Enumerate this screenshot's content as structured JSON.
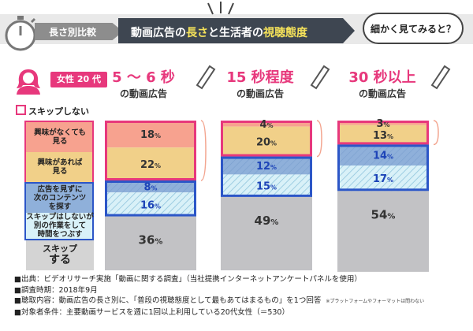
{
  "header": {
    "tag": "長さ別比較",
    "title_pre": "動画広告の",
    "title_hl1": "長さ",
    "title_mid": "と生活者の",
    "title_hl2": "視聴態度",
    "bubble": "細かく見てみると？"
  },
  "persona": "女性 20 代",
  "legend": {
    "skip_not": "スキップしない"
  },
  "categories": {
    "uninterested": [
      "興味がなくても",
      "見る"
    ],
    "interested": [
      "興味があれば",
      "見る"
    ],
    "next_content": [
      "広告を見ずに",
      "次のコンテンツ",
      "を探す"
    ],
    "other_task": [
      "スキップはしないが",
      "別の作業をして",
      "時間をつぶす"
    ],
    "skip": [
      "スキップ",
      "する"
    ]
  },
  "colors": {
    "pink": "#e7387c",
    "salmon": "#f7a28f",
    "tan": "#f1d089",
    "blue_dark": "#8fb0da",
    "blue_light": "#d9f1f8",
    "blue_border": "#2c56c7",
    "gray": "#c2c2c5",
    "gray_cat": "#d4d4d4"
  },
  "chart_data": {
    "type": "bar",
    "stacked": true,
    "title": "動画広告の長さと生活者の視聴態度",
    "categories": [
      "5〜6秒の動画広告",
      "15秒程度の動画広告",
      "30秒以上の動画広告"
    ],
    "column_headers": [
      {
        "main": "5 〜 6 秒",
        "sub": "の動画広告"
      },
      {
        "main": "15 秒程度",
        "sub": "の動画広告"
      },
      {
        "main": "30 秒以上",
        "sub": "の動画広告"
      }
    ],
    "unit": "%",
    "series": [
      {
        "name": "興味がなくても見る",
        "values": [
          18,
          4,
          3
        ],
        "color": "#f7a28f"
      },
      {
        "name": "興味があれば見る",
        "values": [
          22,
          20,
          13
        ],
        "color": "#f1d089"
      },
      {
        "name": "広告を見ずに次のコンテンツを探す",
        "values": [
          8,
          12,
          14
        ],
        "color": "#8fb0da"
      },
      {
        "name": "スキップはしないが別の作業をして時間をつぶす",
        "values": [
          16,
          15,
          17
        ],
        "color": "#d9f1f8"
      },
      {
        "name": "スキップする",
        "values": [
          36,
          49,
          54
        ],
        "color": "#c2c2c5"
      }
    ],
    "ylim": [
      0,
      100
    ]
  },
  "footnotes": [
    "■出典：ビデオリサーチ実施「動画に関する調査」（当社提携インターネットアンケートパネルを使用）",
    "■調査時期：2018年9月",
    "■聴取内容：動画広告の長さ別に、「普段の視聴態度として最もあてはまるもの」を1つ回答",
    "■対象者条件：主要動画サービスを週に1回以上利用している20代女性（＝530）"
  ],
  "footnote_aside": "※プラットフォームやフォーマットは問わない"
}
